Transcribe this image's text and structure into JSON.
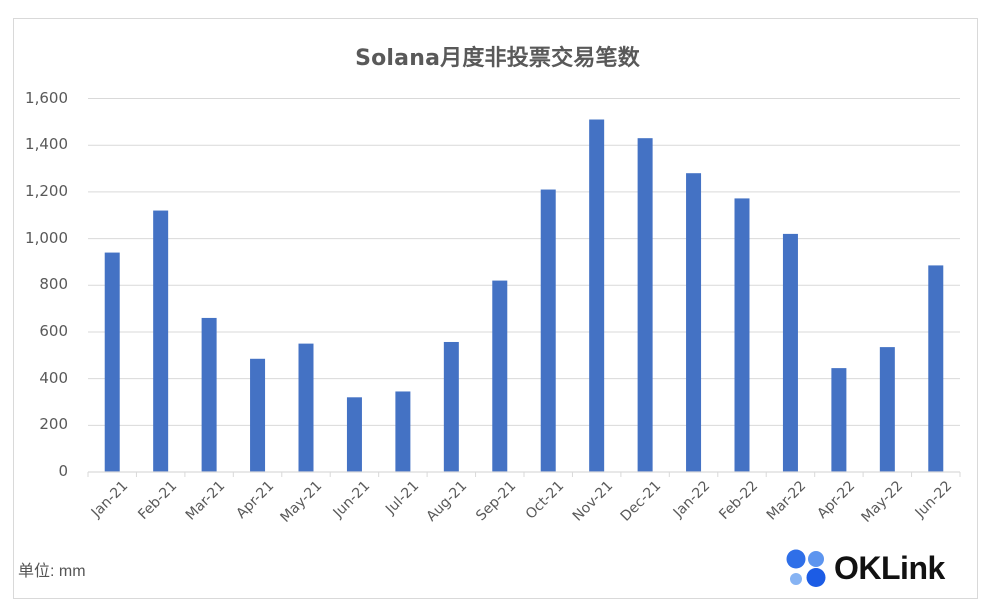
{
  "chart_data": {
    "type": "bar",
    "title": "Solana月度非投票交易笔数",
    "xlabel": "",
    "ylabel": "",
    "unit_note": "单位: mm",
    "ylim": [
      0,
      1600
    ],
    "yticks": [
      0,
      200,
      400,
      600,
      800,
      1000,
      1200,
      1400,
      1600
    ],
    "ytick_labels": [
      "0",
      "200",
      "400",
      "600",
      "800",
      "1,000",
      "1,200",
      "1,400",
      "1,600"
    ],
    "grid": true,
    "legend": "none",
    "bar_color": "#4472C4",
    "categories": [
      "Jan-21",
      "Feb-21",
      "Mar-21",
      "Apr-21",
      "May-21",
      "Jun-21",
      "Jul-21",
      "Aug-21",
      "Sep-21",
      "Oct-21",
      "Nov-21",
      "Dec-21",
      "Jan-22",
      "Feb-22",
      "Mar-22",
      "Apr-22",
      "May-22",
      "Jun-22"
    ],
    "values": [
      940,
      1120,
      660,
      485,
      550,
      320,
      345,
      557,
      820,
      1210,
      1510,
      1430,
      1280,
      1172,
      1020,
      445,
      535,
      885
    ]
  },
  "footer": {
    "unit_label": "单位: mm",
    "logo_text": "OKLink"
  }
}
